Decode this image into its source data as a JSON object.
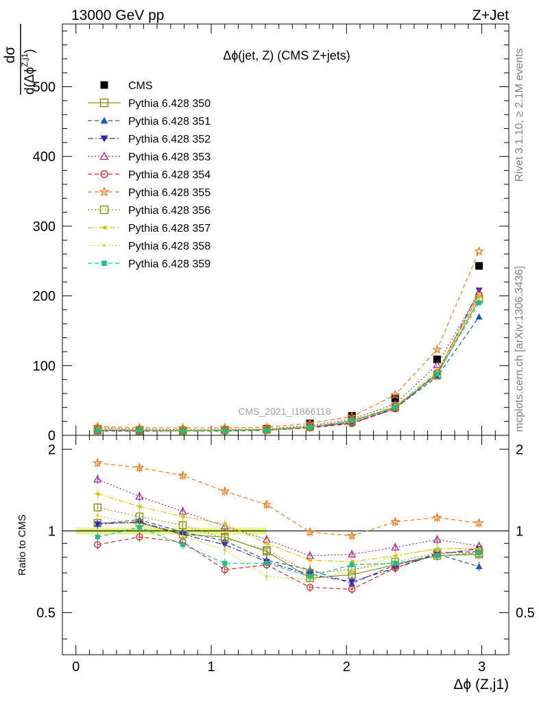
{
  "header": {
    "left": "13000 GeV pp",
    "right": "Z+Jet"
  },
  "side": {
    "rivet": "Rivet 3.1.10, ≥ 2.1M events",
    "mcplots": "mcplots.cern.ch [arXiv:1306.3436]"
  },
  "chart_data": [
    {
      "type": "scatter",
      "title": "Δϕ(jet, Z) (CMS Z+jets)",
      "ylabel_num": "dσ",
      "ylabel_den": "d(Δϕ",
      "ylabel_sup": "Z,j1",
      "ylabel_close": ")",
      "watermark": "CMS_2021_I1866118",
      "xlim": [
        -0.1,
        3.2
      ],
      "ylim": [
        0,
        590
      ],
      "y_ticks": [
        0,
        100,
        200,
        300,
        400,
        500
      ],
      "y_tick_labels": [
        "0",
        "100",
        "200",
        "300",
        "400",
        "500"
      ],
      "legend_position": "top-left",
      "x": [
        0.16,
        0.47,
        0.79,
        1.1,
        1.41,
        1.73,
        2.04,
        2.36,
        2.67,
        2.98
      ],
      "series": [
        {
          "name": "CMS",
          "color": "#000000",
          "marker": "square-filled",
          "line": "none",
          "values": [
            7,
            6.5,
            7,
            8,
            9.5,
            17,
            28,
            53,
            109,
            243
          ]
        },
        {
          "name": "Pythia 6.428 350",
          "color": "#8b8b1a",
          "marker": "square-open",
          "line": "solid",
          "values": [
            7.5,
            7,
            6.5,
            7.5,
            8.5,
            12,
            20,
            40,
            87,
            195
          ]
        },
        {
          "name": "Pythia 6.428 351",
          "color": "#1f58b4",
          "marker": "triangle-up-filled",
          "line": "dashed",
          "values": [
            7.5,
            7,
            6.5,
            7,
            7.5,
            12,
            17.5,
            39,
            84,
            170
          ]
        },
        {
          "name": "Pythia 6.428 352",
          "color": "#3b22b4",
          "marker": "triangle-down-filled",
          "line": "dashdot",
          "values": [
            7.5,
            7,
            6.5,
            7,
            7.5,
            11.5,
            18,
            38,
            88,
            208
          ]
        },
        {
          "name": "Pythia 6.428 353",
          "color": "#b0228c",
          "marker": "triangle-up-open",
          "line": "dotted",
          "values": [
            11,
            9,
            8,
            8.5,
            9,
            14,
            23,
            45,
            101,
            205
          ]
        },
        {
          "name": "Pythia 6.428 354",
          "color": "#e01b2a",
          "marker": "circle-open",
          "line": "dashed",
          "values": [
            6,
            6,
            6.3,
            5.8,
            7,
            10.5,
            17,
            38,
            90,
            202
          ]
        },
        {
          "name": "Pythia 6.428 355",
          "color": "#f07a1e",
          "marker": "star-open",
          "line": "dashed",
          "values": [
            12.5,
            11,
            10.5,
            11,
            11.5,
            17,
            27,
            58,
            123,
            264
          ]
        },
        {
          "name": "Pythia 6.428 356",
          "color": "#8c9614",
          "marker": "square-open",
          "line": "dotted",
          "values": [
            8.5,
            7.5,
            7,
            7.5,
            8,
            12,
            20,
            41,
            86,
            196
          ]
        },
        {
          "name": "Pythia 6.428 357",
          "color": "#d4c70a",
          "marker": "triangle-left",
          "line": "dashdot",
          "values": [
            9.5,
            7.7,
            7.4,
            8,
            8.4,
            12.5,
            21,
            42,
            90,
            200
          ]
        },
        {
          "name": "Pythia 6.428 358",
          "color": "#bcd71e",
          "marker": "dot",
          "line": "dotted",
          "values": [
            8,
            7,
            6.7,
            6.8,
            7.2,
            11.5,
            20,
            42,
            92,
            203
          ]
        },
        {
          "name": "Pythia 6.428 359",
          "color": "#1cbf8c",
          "marker": "square-filled-small",
          "line": "dashed",
          "values": [
            6.5,
            7.2,
            6.3,
            6,
            7.2,
            11.6,
            21,
            40,
            88,
            190
          ]
        }
      ]
    },
    {
      "type": "line",
      "ylabel": "Ratio to CMS",
      "xlabel": "Δϕ (Z,j1)",
      "xlim": [
        -0.1,
        3.2
      ],
      "ylim": [
        0.35,
        2.25
      ],
      "x_ticks": [
        0,
        1,
        2,
        3
      ],
      "x_tick_labels": [
        "0",
        "1",
        "2",
        "3"
      ],
      "y_ticks": [
        0.5,
        1,
        2
      ],
      "y_tick_labels": [
        "0.5",
        "1",
        "2"
      ],
      "x": [
        0.16,
        0.47,
        0.79,
        1.1,
        1.41,
        1.73,
        2.04,
        2.36,
        2.67,
        2.98
      ],
      "reference": 1,
      "series": [
        {
          "name": "Pythia 6.428 350",
          "color": "#8b8b1a",
          "line": "solid",
          "marker": "square-open",
          "values": [
            1.07,
            1.07,
            0.97,
            0.95,
            0.84,
            0.67,
            0.69,
            0.75,
            0.81,
            0.82
          ]
        },
        {
          "name": "Pythia 6.428 351",
          "color": "#1f58b4",
          "line": "dashed",
          "marker": "triangle-up-filled",
          "values": [
            1.06,
            1.1,
            0.99,
            0.92,
            0.78,
            0.72,
            0.64,
            0.75,
            0.82,
            0.74
          ]
        },
        {
          "name": "Pythia 6.428 352",
          "color": "#3b22b4",
          "line": "dashdot",
          "marker": "triangle-down-filled",
          "values": [
            1.06,
            1.08,
            0.97,
            0.89,
            0.77,
            0.69,
            0.65,
            0.73,
            0.82,
            0.86
          ]
        },
        {
          "name": "Pythia 6.428 353",
          "color": "#b0228c",
          "line": "dotted",
          "marker": "triangle-up-open",
          "values": [
            1.55,
            1.34,
            1.18,
            1.04,
            0.93,
            0.81,
            0.82,
            0.87,
            0.93,
            0.88
          ]
        },
        {
          "name": "Pythia 6.428 354",
          "color": "#e01b2a",
          "line": "dashed",
          "marker": "circle-open",
          "values": [
            0.89,
            0.95,
            0.91,
            0.72,
            0.75,
            0.62,
            0.61,
            0.73,
            0.83,
            0.84
          ]
        },
        {
          "name": "Pythia 6.428 355",
          "color": "#f07a1e",
          "line": "dashed",
          "marker": "star-open",
          "values": [
            1.78,
            1.71,
            1.6,
            1.4,
            1.25,
            0.99,
            0.96,
            1.08,
            1.12,
            1.07
          ]
        },
        {
          "name": "Pythia 6.428 356",
          "color": "#8c9614",
          "line": "dotted",
          "marker": "square-open",
          "values": [
            1.22,
            1.13,
            1.05,
            0.94,
            0.85,
            0.7,
            0.72,
            0.77,
            0.83,
            0.83
          ]
        },
        {
          "name": "Pythia 6.428 357",
          "color": "#d4c70a",
          "line": "dashdot",
          "marker": "triangle-left",
          "values": [
            1.37,
            1.23,
            1.13,
            1.06,
            0.9,
            0.78,
            0.77,
            0.81,
            0.86,
            0.86
          ]
        },
        {
          "name": "Pythia 6.428 358",
          "color": "#bcd71e",
          "line": "dotted",
          "marker": "dot",
          "values": [
            1.14,
            1.05,
            0.96,
            0.85,
            0.68,
            0.66,
            0.71,
            0.81,
            0.86,
            0.86
          ]
        },
        {
          "name": "Pythia 6.428 359",
          "color": "#1cbf8c",
          "line": "dashed",
          "marker": "square-filled-small",
          "values": [
            0.95,
            1.03,
            0.89,
            0.76,
            0.76,
            0.68,
            0.75,
            0.76,
            0.81,
            0.83
          ]
        }
      ]
    }
  ]
}
